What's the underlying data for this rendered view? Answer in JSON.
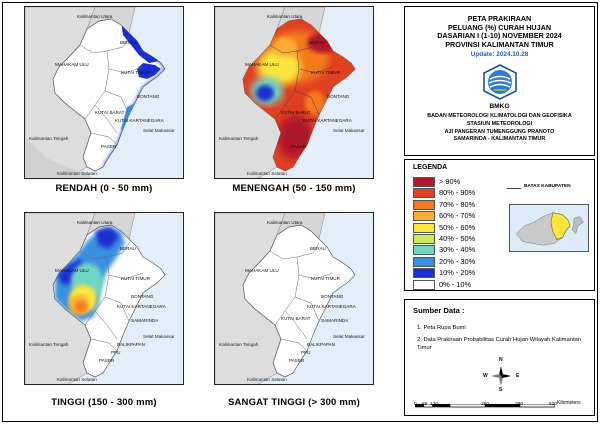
{
  "maps": [
    {
      "caption": "RENDAH (0 - 50 mm)",
      "theme": "rendah"
    },
    {
      "caption": "MENENGAH (50 - 150 mm)",
      "theme": "menengah"
    },
    {
      "caption": "TINGGI (150 - 300 mm)",
      "theme": "tinggi"
    },
    {
      "caption": "SANGAT TINGGI (> 300 mm)",
      "theme": "sangat-tinggi"
    }
  ],
  "map_labels": {
    "kaltara": "Kalimantan Utara",
    "mahakam_ulu": "MAHAKAM ULU",
    "berau": "BERAU",
    "kutai_timur": "KUTAI TIMUR",
    "bontang": "BONTANG",
    "kutai_kartanegara": "KUTAI KARTANEGARA",
    "kutai_barat": "KUTAI BARAT",
    "samarinda": "SAMARINDA",
    "balikpapan": "BALIKPAPAN",
    "ppu": "PPU",
    "paser": "PASER",
    "kalteng": "Kalimantan Tengah",
    "kalsel": "Kalimantan Selatan",
    "selat_makassar": "Selat Makassar"
  },
  "title": {
    "line1": "PETA PRAKIRAAN",
    "line2": "PELUANG (%) CURAH HUJAN",
    "line3": "DASARIAN I (1-10) NOVEMBER 2024",
    "line4": "PROVINSI KALIMANTAN TIMUR",
    "update": "Update: 2024.10.28"
  },
  "logo_text": "BMKG",
  "agency": {
    "line1": "BADAN METEOROLOGI KLIMATOLOGI DAN GEOFISIKA",
    "line2": "STASIUN METEOROLOGI",
    "line3": "AJI PANGERAN TUMENGGUNG PRANOTO",
    "line4": "SAMARINDA - KALIMANTAN TIMUR"
  },
  "legend": {
    "title": "LEGENDA",
    "boundary_label": "BATAS KABUPATEN",
    "items": [
      {
        "label": "> 90%",
        "color": "#b2182b"
      },
      {
        "label": "80% - 90%",
        "color": "#e04020"
      },
      {
        "label": "70% - 80%",
        "color": "#f47a1f"
      },
      {
        "label": "60% - 70%",
        "color": "#fdae32"
      },
      {
        "label": "50% - 60%",
        "color": "#fde53a"
      },
      {
        "label": "40% - 50%",
        "color": "#c9eb5a"
      },
      {
        "label": "30% - 40%",
        "color": "#6fd6c4"
      },
      {
        "label": "20% - 30%",
        "color": "#3a8fe0"
      },
      {
        "label": "10% - 20%",
        "color": "#1a2fd0"
      },
      {
        "label": "0% - 10%",
        "color": "#ffffff"
      }
    ]
  },
  "sources": {
    "title": "Sumber Data :",
    "item1": "1. Peta Rupa Bumi",
    "item2": "2. Data Prakiraan Probabilitas Curah Hujan Wilayah Kalimantan Timur"
  },
  "compass": {
    "n": "N",
    "s": "S",
    "e": "E",
    "w": "W"
  },
  "scale": {
    "ticks": [
      "0",
      "65",
      "130",
      "260",
      "390",
      "520"
    ],
    "unit": "Kilometers"
  }
}
